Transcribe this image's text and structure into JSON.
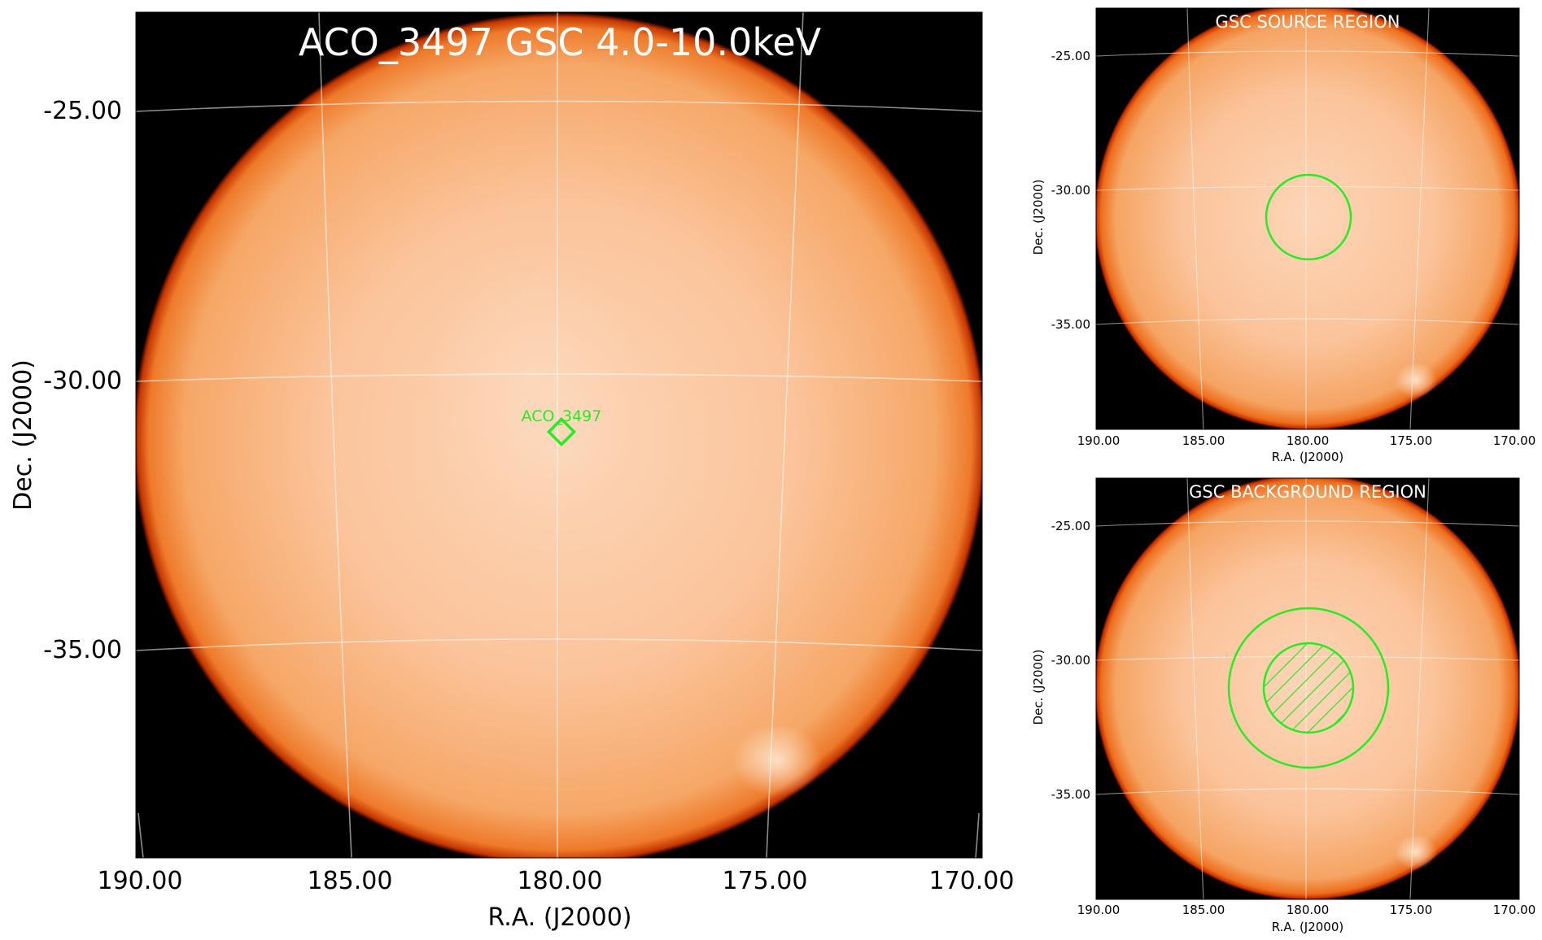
{
  "main_panel": {
    "title": "ACO_3497 GSC 4.0-10.0keV",
    "xlabel": "R.A. (J2000)",
    "ylabel": "Dec. (J2000)",
    "x_ticks": [
      "190.00",
      "185.00",
      "180.00",
      "175.00",
      "170.00"
    ],
    "y_ticks": [
      "-25.00",
      "-30.00",
      "-35.00"
    ],
    "marker_label": "ACO_3497"
  },
  "source_panel": {
    "title": "GSC SOURCE REGION",
    "xlabel": "R.A. (J2000)",
    "ylabel": "Dec. (J2000)",
    "x_ticks": [
      "190.00",
      "185.00",
      "180.00",
      "175.00",
      "170.00"
    ],
    "y_ticks": [
      "-25.00",
      "-30.00",
      "-35.00"
    ]
  },
  "background_panel": {
    "title": "GSC BACKGROUND REGION",
    "xlabel": "R.A. (J2000)",
    "ylabel": "Dec. (J2000)",
    "x_ticks": [
      "190.00",
      "185.00",
      "180.00",
      "175.00",
      "170.00"
    ],
    "y_ticks": [
      "-25.00",
      "-30.00",
      "-35.00"
    ]
  },
  "colors": {
    "background": "#000000",
    "disk_center": "#fcd3b4",
    "disk_mid": "#f8ad72",
    "disk_edge": "#e65a08",
    "region_green": "#22ee22"
  }
}
